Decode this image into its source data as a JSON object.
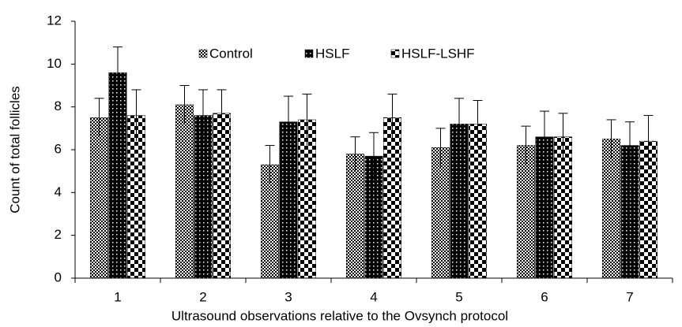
{
  "chart_data": {
    "type": "bar",
    "y_label": "Count of total follicles",
    "x_label": "Ultrasound observations relative to the Ovsynch protocol",
    "categories": [
      "1",
      "2",
      "3",
      "4",
      "5",
      "6",
      "7"
    ],
    "series": [
      {
        "name": "Control",
        "color": "#000000",
        "values": [
          7.5,
          8.1,
          5.3,
          5.8,
          6.1,
          6.2,
          6.5
        ],
        "errors": [
          0.9,
          0.9,
          0.9,
          0.8,
          0.9,
          0.9,
          0.9
        ]
      },
      {
        "name": "HSLF",
        "color": "#000000",
        "values": [
          9.6,
          7.6,
          7.3,
          5.7,
          7.2,
          6.6,
          6.2
        ],
        "errors": [
          1.2,
          1.2,
          1.2,
          1.1,
          1.2,
          1.2,
          1.1
        ]
      },
      {
        "name": "HSLF-LSHF",
        "color": "#000000",
        "values": [
          7.6,
          7.7,
          7.4,
          7.5,
          7.2,
          6.6,
          6.4
        ],
        "errors": [
          1.2,
          1.1,
          1.2,
          1.1,
          1.1,
          1.1,
          1.2
        ]
      }
    ],
    "ylim": [
      0,
      12
    ],
    "yticks": [
      0,
      2,
      4,
      6,
      8,
      10,
      12
    ],
    "grid": false,
    "legend": "top"
  }
}
